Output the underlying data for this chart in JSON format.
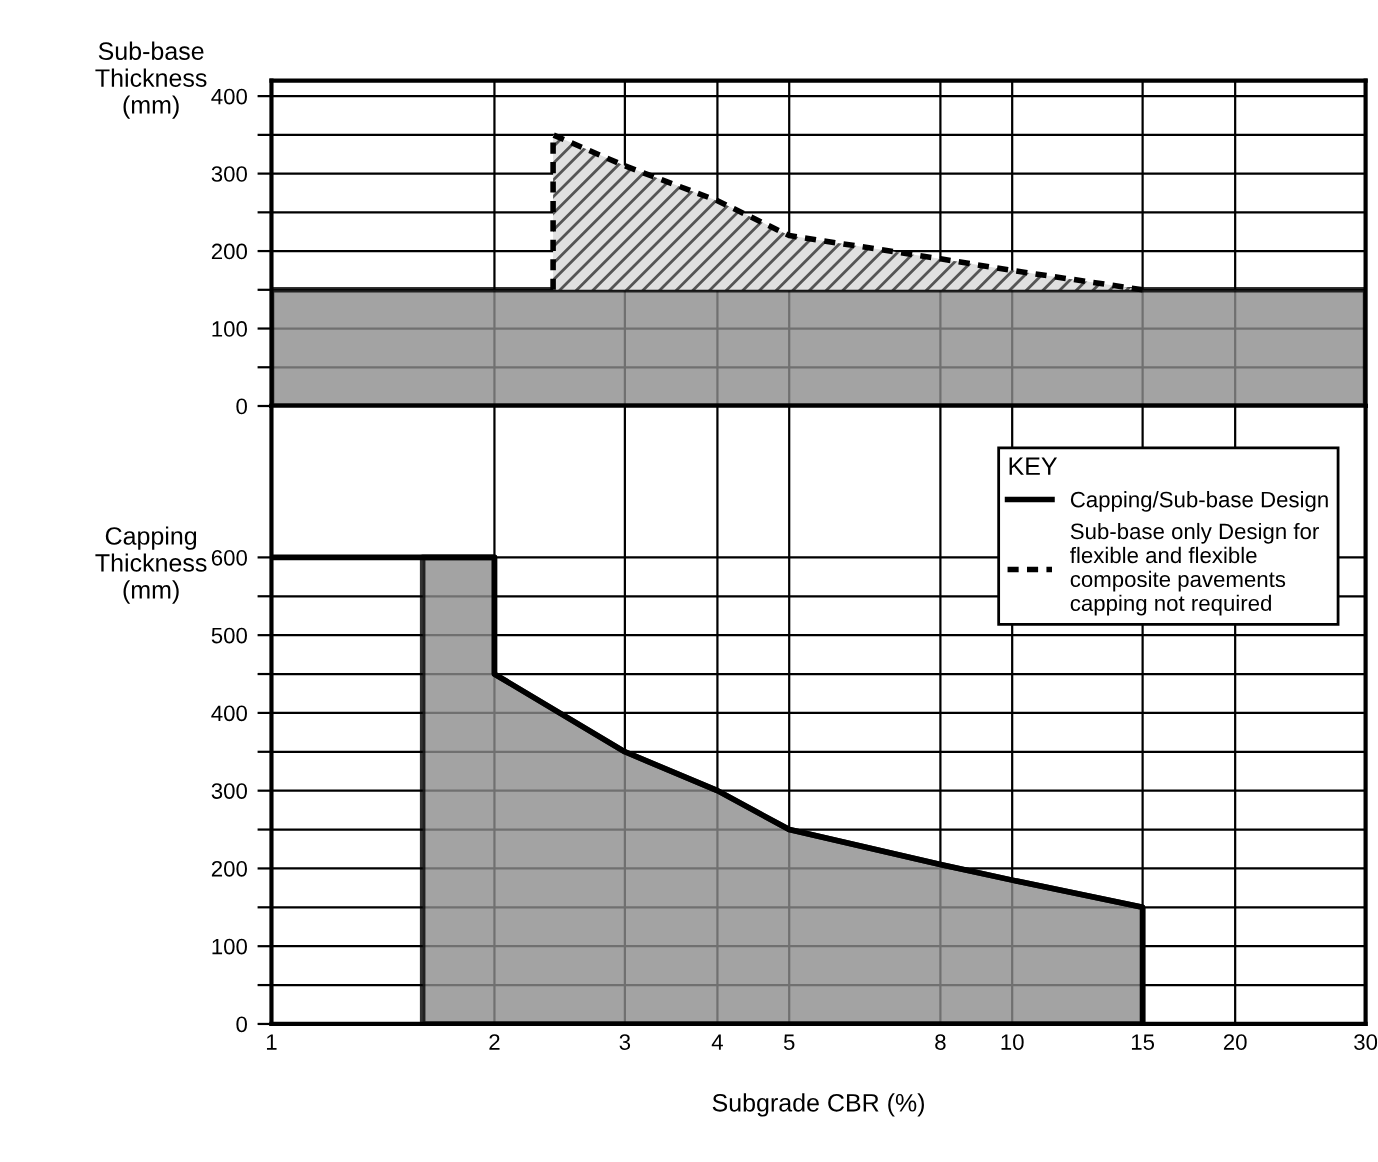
{
  "chart_data": [
    {
      "type": "line",
      "ylabel": "Sub-base\nThickness\n(mm)",
      "log": "x",
      "xlim": [
        1,
        30
      ],
      "xticks": [
        1,
        2,
        3,
        4,
        5,
        8,
        10,
        15,
        20,
        30
      ],
      "ylim": [
        0,
        420
      ],
      "yticks": [
        0,
        {
          "value": 50,
          "label": null
        },
        100,
        {
          "value": 150,
          "label": null
        },
        200,
        {
          "value": 250,
          "label": null
        },
        300,
        {
          "value": 350,
          "label": null
        },
        400
      ],
      "tick_labels": "y",
      "grid": true,
      "series": [
        {
          "type": "area",
          "color": "#8c8c8c",
          "x": [
            1,
            30
          ],
          "values": [
            150,
            150
          ]
        },
        {
          "name": "Sub-base only Design for\nflexible and flexible\ncomposite pavements\ncapping not required",
          "color": "#000000",
          "line_style": "dashed",
          "x": [
            2.4,
            2.4,
            3,
            4,
            5,
            8,
            10,
            15
          ],
          "values": [
            150,
            350,
            310,
            265,
            220,
            190,
            175,
            150
          ],
          "lower": [
            null,
            150,
            150,
            150,
            150,
            150,
            150,
            150
          ],
          "upper": [
            null,
            350,
            310,
            265,
            220,
            190,
            175,
            150
          ]
        }
      ]
    },
    {
      "type": "line",
      "ylabel": "Capping\nThickness\n(mm)",
      "xlabel": "Subgrade CBR (%)",
      "log": "x",
      "xlim": [
        1,
        30
      ],
      "xticks": [
        1,
        2,
        3,
        4,
        5,
        8,
        10,
        15,
        20,
        30
      ],
      "ylim": [
        0,
        795
      ],
      "yticks": [
        0,
        {
          "value": 50,
          "label": null
        },
        100,
        {
          "value": 150,
          "label": null
        },
        200,
        {
          "value": 250,
          "label": null
        },
        300,
        {
          "value": 350,
          "label": null
        },
        400,
        {
          "value": 450,
          "label": null
        },
        500,
        {
          "value": 550,
          "label": null
        },
        600
      ],
      "grid": true,
      "legend": "top right",
      "legend_title": "KEY",
      "series": [
        {
          "type": "area",
          "color": "#8c8c8c",
          "x": [
            1.6,
            2,
            2,
            3,
            4,
            5,
            8,
            10,
            15
          ],
          "values": [
            600,
            600,
            450,
            350,
            300,
            250,
            205,
            185,
            150
          ]
        },
        {
          "name": "Capping/Sub-base Design",
          "color": "#000000",
          "line_style": "solid",
          "x": [
            1,
            2,
            2,
            3,
            4,
            5,
            8,
            10,
            15,
            15
          ],
          "values": [
            600,
            600,
            450,
            350,
            300,
            250,
            205,
            185,
            150,
            0
          ]
        }
      ]
    }
  ]
}
